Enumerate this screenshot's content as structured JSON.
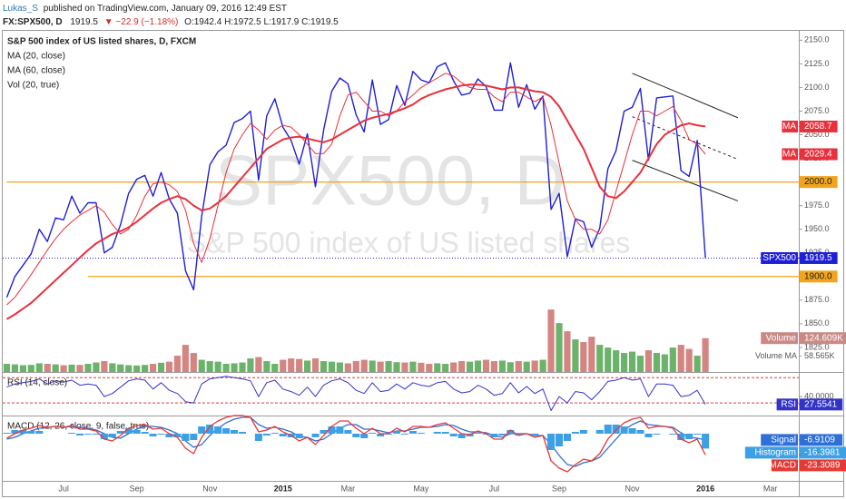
{
  "header": {
    "author": "Lukas_S",
    "published": "published on TradingView.com, January 09, 2016 12:49 EST",
    "symbol": "FX:SPX500, D",
    "quote": "1919.5",
    "change": "▼ −22.9 (−1.18%)",
    "ohlc": "O:1942.4 H:1972.5 L:1917.9 C:1919.5"
  },
  "chart_data": [
    {
      "type": "line",
      "title": "S&P 500 index of US listed shares, D, FXCM",
      "watermark": "SPX500, D",
      "watermark_subtitle": "S&P 500 index of US listed shares",
      "categories": [
        null,
        null,
        null,
        null,
        null,
        null,
        null,
        "Jul",
        null,
        null,
        null,
        null,
        null,
        null,
        null,
        null,
        "Sep",
        null,
        null,
        null,
        null,
        null,
        null,
        null,
        null,
        "Nov",
        null,
        null,
        null,
        null,
        null,
        null,
        null,
        null,
        "2015",
        null,
        null,
        null,
        null,
        null,
        null,
        null,
        "Mar",
        null,
        null,
        null,
        null,
        null,
        null,
        null,
        null,
        "May",
        null,
        null,
        null,
        null,
        null,
        null,
        null,
        null,
        "Jul",
        null,
        null,
        null,
        null,
        null,
        null,
        null,
        "Sep",
        null,
        null,
        null,
        null,
        null,
        null,
        null,
        null,
        "Nov",
        null,
        null,
        null,
        null,
        null,
        null,
        null,
        null,
        "2016",
        null,
        null,
        null,
        null,
        null,
        null,
        null,
        "Mar",
        null,
        null,
        null
      ],
      "ylim": [
        1799,
        2158
      ],
      "yticks": [
        {
          "value": 1825,
          "label": "1825.0"
        },
        {
          "value": 1850,
          "label": "1850.0"
        },
        {
          "value": 1875,
          "label": "1875.0"
        },
        {
          "value": 1900,
          "label": "1900.0"
        },
        {
          "value": 1925,
          "label": "1925.0"
        },
        {
          "value": 1950,
          "label": "1950.0"
        },
        {
          "value": 1975,
          "label": "1975.0"
        },
        {
          "value": 2000,
          "label": "2000.0"
        },
        {
          "value": 2025,
          "label": "2025.0"
        },
        {
          "value": 2050,
          "label": "2050.0"
        },
        {
          "value": 2075,
          "label": "2075.0"
        },
        {
          "value": 2100,
          "label": "2100.0"
        },
        {
          "value": 2125,
          "label": "2125.0"
        },
        {
          "value": 2150,
          "label": "2150.0"
        }
      ],
      "series": [
        {
          "name": "SPX500",
          "color": "#1f1fd6",
          "line_width": 1.4,
          "last_price_line": true,
          "values": [
            1878,
            1900,
            1912,
            1924,
            1950,
            1937,
            1962,
            1960,
            1985,
            1967,
            1978,
            1978,
            1925,
            1931,
            1955,
            1988,
            2003,
            2007,
            1985,
            2010,
            1982,
            1967,
            1906,
            1886,
            1964,
            2018,
            2032,
            2039,
            2063,
            2067,
            2075,
            2002,
            2070,
            2088,
            2058,
            2044,
            2019,
            2051,
            1995,
            2055,
            2096,
            2110,
            2104,
            2071,
            2053,
            2108,
            2061,
            2066,
            2102,
            2081,
            2117,
            2108,
            2105,
            2122,
            2126,
            2107,
            2092,
            2094,
            2109,
            2101,
            2076,
            2076,
            2126,
            2079,
            2103,
            2077,
            2091,
            1971,
            1988,
            1921,
            1961,
            1958,
            1931,
            1951,
            2014,
            2033,
            2075,
            2079,
            2099,
            2023,
            2089,
            2090,
            2091,
            2012,
            2006,
            2044,
            1919.5,
            null,
            null,
            null,
            null,
            null,
            null,
            null,
            null,
            null,
            null,
            null
          ]
        },
        {
          "name": "MA (20, close)",
          "badge": "MA",
          "color": "#e8313c",
          "line_width": 1,
          "values": [
            1870,
            1878,
            1890,
            1902,
            1915,
            1928,
            1940,
            1950,
            1958,
            1965,
            1970,
            1975,
            1968,
            1955,
            1945,
            1950,
            1965,
            1985,
            1998,
            2000,
            1997,
            1990,
            1970,
            1935,
            1915,
            1940,
            1975,
            2010,
            2035,
            2050,
            2062,
            2055,
            2045,
            2055,
            2060,
            2058,
            2050,
            2040,
            2030,
            2030,
            2040,
            2070,
            2092,
            2095,
            2085,
            2075,
            2075,
            2070,
            2075,
            2085,
            2092,
            2100,
            2105,
            2110,
            2115,
            2112,
            2105,
            2100,
            2098,
            2098,
            2090,
            2085,
            2095,
            2095,
            2090,
            2085,
            2090,
            2060,
            2020,
            1980,
            1960,
            1950,
            1950,
            1945,
            1960,
            1990,
            2020,
            2050,
            2075,
            2075,
            2070,
            2075,
            2080,
            2065,
            2045,
            2040,
            2029.4,
            null,
            null,
            null,
            null,
            null,
            null,
            null,
            null,
            null,
            null,
            null
          ]
        },
        {
          "name": "MA (60, close)",
          "badge": "MA",
          "color": "#e8313c",
          "line_width": 2,
          "values": [
            1855,
            1860,
            1866,
            1872,
            1880,
            1888,
            1896,
            1904,
            1912,
            1920,
            1928,
            1935,
            1940,
            1945,
            1948,
            1952,
            1958,
            1965,
            1972,
            1978,
            1982,
            1985,
            1982,
            1975,
            1970,
            1972,
            1978,
            1985,
            1995,
            2005,
            2015,
            2025,
            2035,
            2040,
            2045,
            2047,
            2048,
            2046,
            2044,
            2042,
            2045,
            2050,
            2055,
            2060,
            2065,
            2068,
            2070,
            2072,
            2075,
            2078,
            2082,
            2088,
            2092,
            2095,
            2098,
            2100,
            2102,
            2103,
            2103,
            2102,
            2100,
            2098,
            2100,
            2100,
            2098,
            2096,
            2095,
            2090,
            2080,
            2065,
            2050,
            2035,
            2015,
            1995,
            1985,
            1983,
            1990,
            2000,
            2010,
            2025,
            2040,
            2050,
            2055,
            2060,
            2062,
            2060,
            2058.7,
            null,
            null,
            null,
            null,
            null,
            null,
            null,
            null,
            null,
            null,
            null
          ]
        }
      ],
      "volume": {
        "name": "Vol (20, true)",
        "badge": "Volume",
        "ylim": [
          0,
          1250
        ],
        "up_color": "#3a9a3a",
        "down_color": "#c65b57",
        "values": [
          30,
          28,
          25,
          26,
          32,
          30,
          28,
          25,
          27,
          26,
          30,
          35,
          40,
          32,
          28,
          25,
          24,
          26,
          30,
          34,
          38,
          60,
          100,
          70,
          45,
          40,
          38,
          30,
          32,
          35,
          50,
          55,
          40,
          30,
          45,
          50,
          48,
          42,
          50,
          40,
          38,
          35,
          32,
          40,
          45,
          42,
          38,
          40,
          36,
          35,
          38,
          34,
          30,
          32,
          30,
          35,
          40,
          38,
          42,
          45,
          40,
          42,
          36,
          40,
          38,
          42,
          45,
          230,
          180,
          150,
          120,
          110,
          130,
          100,
          90,
          80,
          70,
          75,
          60,
          80,
          70,
          65,
          90,
          100,
          85,
          60,
          124.609,
          null,
          null,
          null,
          null,
          null,
          null,
          null,
          null,
          null,
          null,
          null
        ],
        "last_label": "124.609K",
        "ma_name": "Volume MA",
        "ma_last": 58.565,
        "ma_last_label": "58.565K"
      },
      "hlines": [
        {
          "value": 2000,
          "label": "2000.0",
          "color": "#f2a51c",
          "from": 0
        },
        {
          "value": 1900,
          "label": "1900.0",
          "color": "#f2a51c",
          "from": 10
        }
      ],
      "trendlines": [
        {
          "points": [
            [
              77,
              2115
            ],
            [
              90,
              2068
            ]
          ],
          "dash": false
        },
        {
          "points": [
            [
              77,
              2069
            ],
            [
              90,
              2024
            ]
          ],
          "dash": true
        },
        {
          "points": [
            [
              77,
              2023
            ],
            [
              90,
              1980
            ]
          ],
          "dash": false
        }
      ]
    },
    {
      "type": "line",
      "title": "RSI (14, close)",
      "ylim": [
        13,
        76
      ],
      "yticks": [
        {
          "value": 40,
          "label": "40.0000"
        }
      ],
      "bands": [
        30,
        70
      ],
      "band_color": "#e53935",
      "series": [
        {
          "name": "RSI",
          "color": "#3333c8",
          "line_width": 1,
          "values": [
            55,
            60,
            62,
            64,
            68,
            60,
            65,
            63,
            66,
            58,
            60,
            58,
            40,
            45,
            55,
            65,
            68,
            66,
            52,
            62,
            50,
            45,
            32,
            30,
            60,
            68,
            70,
            72,
            70,
            68,
            65,
            40,
            62,
            66,
            52,
            48,
            42,
            55,
            40,
            58,
            65,
            68,
            62,
            50,
            45,
            62,
            48,
            50,
            60,
            52,
            62,
            58,
            56,
            62,
            64,
            52,
            46,
            48,
            58,
            52,
            42,
            45,
            62,
            46,
            56,
            45,
            52,
            18,
            40,
            30,
            48,
            46,
            35,
            48,
            64,
            66,
            70,
            66,
            68,
            40,
            60,
            60,
            58,
            40,
            42,
            50,
            27.5541,
            null,
            null,
            null,
            null,
            null,
            null,
            null,
            null,
            null,
            null,
            null
          ]
        }
      ]
    },
    {
      "type": "macd",
      "title": "MACD (12, 26, close, 9, false, true)",
      "ylim": [
        -52,
        18
      ],
      "series": [
        {
          "name": "Signal",
          "color": "#2f6fd6",
          "line_width": 1.3,
          "values": [
            -6,
            -4,
            0,
            3,
            6,
            7,
            8,
            7,
            8,
            7,
            6,
            4,
            0,
            -4,
            -5,
            0,
            5,
            8,
            8,
            7,
            4,
            0,
            -8,
            -15,
            -12,
            -2,
            6,
            12,
            16,
            18,
            18,
            10,
            6,
            7,
            5,
            2,
            -3,
            -4,
            -8,
            -6,
            0,
            6,
            10,
            10,
            5,
            5,
            3,
            1,
            3,
            3,
            5,
            7,
            7,
            8,
            10,
            9,
            5,
            2,
            2,
            1,
            -2,
            -4,
            0,
            0,
            0,
            -2,
            -2,
            -12,
            -24,
            -34,
            -36,
            -32,
            -30,
            -26,
            -16,
            -6,
            4,
            10,
            14,
            10,
            9,
            8,
            7,
            1,
            -4,
            -5,
            -6.9109,
            null,
            null,
            null,
            null,
            null,
            null,
            null,
            null,
            null,
            null,
            null
          ]
        },
        {
          "name": "Histogram",
          "color": "#3da0e6",
          "style": "histogram",
          "values": [
            1,
            4,
            4,
            3,
            3,
            0,
            0,
            0,
            1,
            -2,
            -1,
            -1,
            -6,
            -4,
            3,
            6,
            4,
            2,
            -3,
            -1,
            -4,
            -4,
            -8,
            -7,
            8,
            10,
            8,
            6,
            4,
            2,
            0,
            -8,
            -2,
            1,
            -3,
            -4,
            -5,
            0,
            -4,
            4,
            8,
            8,
            4,
            -4,
            -5,
            1,
            -3,
            -1,
            3,
            -1,
            3,
            1,
            0,
            2,
            2,
            -3,
            -5,
            -3,
            1,
            -1,
            -4,
            -2,
            4,
            -2,
            0,
            -2,
            0,
            -18,
            -14,
            -8,
            2,
            4,
            0,
            4,
            10,
            10,
            8,
            6,
            4,
            -4,
            -1,
            0,
            -1,
            -7,
            -6,
            -1,
            -16.3981,
            null,
            null,
            null,
            null,
            null,
            null,
            null,
            null,
            null,
            null,
            null
          ]
        },
        {
          "name": "MACD",
          "color": "#e53935",
          "line_width": 1.3,
          "values": [
            -5,
            0,
            4,
            6,
            9,
            7,
            8,
            7,
            9,
            5,
            5,
            3,
            -6,
            -8,
            -2,
            6,
            9,
            10,
            5,
            6,
            0,
            -4,
            -16,
            -22,
            -4,
            8,
            14,
            18,
            20,
            20,
            18,
            2,
            4,
            8,
            2,
            -2,
            -8,
            -4,
            -12,
            -2,
            8,
            14,
            14,
            6,
            0,
            6,
            0,
            0,
            6,
            2,
            8,
            8,
            7,
            10,
            12,
            6,
            0,
            -1,
            3,
            0,
            -6,
            -6,
            4,
            -2,
            0,
            -4,
            -2,
            -30,
            -38,
            -42,
            -34,
            -28,
            -30,
            -22,
            -6,
            4,
            12,
            16,
            18,
            6,
            8,
            8,
            6,
            -6,
            -10,
            -6,
            -23.3089,
            null,
            null,
            null,
            null,
            null,
            null,
            null,
            null,
            null,
            null,
            null
          ]
        }
      ]
    }
  ]
}
